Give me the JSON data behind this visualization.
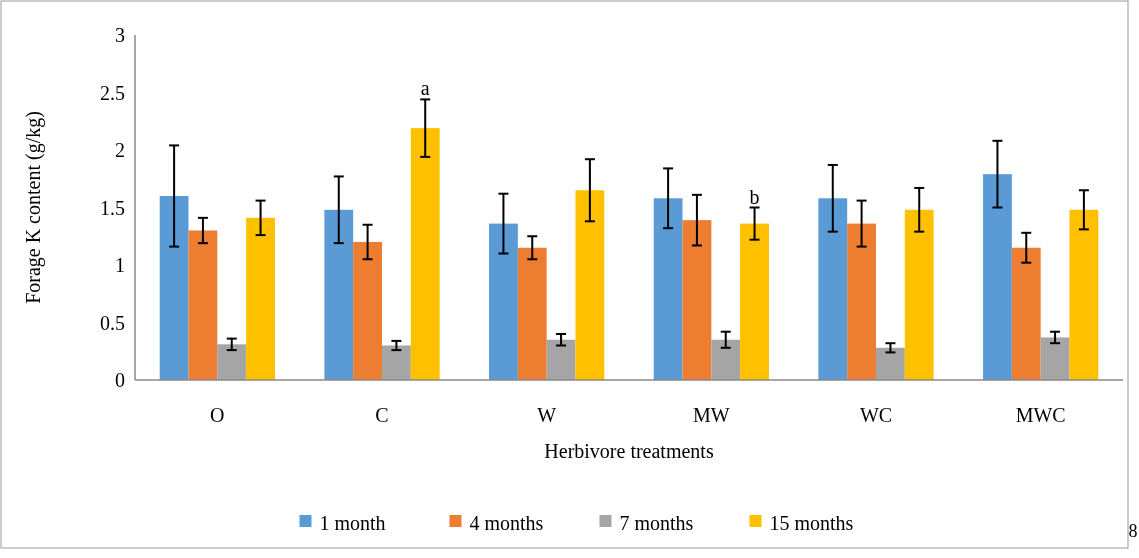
{
  "chart_data": {
    "type": "bar",
    "xlabel": "Herbivore treatments",
    "ylabel": "Forage K content (g/kg)",
    "categories": [
      "O",
      "C",
      "W",
      "MW",
      "WC",
      "MWC"
    ],
    "series": [
      {
        "name": "1 month",
        "color": "#5b9bd5",
        "values": [
          1.6,
          1.48,
          1.36,
          1.58,
          1.58,
          1.79
        ],
        "errors": [
          0.44,
          0.29,
          0.26,
          0.26,
          0.29,
          0.29
        ]
      },
      {
        "name": "4 months",
        "color": "#ed7d31",
        "values": [
          1.3,
          1.2,
          1.15,
          1.39,
          1.36,
          1.15
        ],
        "errors": [
          0.11,
          0.15,
          0.1,
          0.22,
          0.2,
          0.13
        ]
      },
      {
        "name": "7 months",
        "color": "#a5a5a5",
        "values": [
          0.31,
          0.3,
          0.35,
          0.35,
          0.28,
          0.37
        ],
        "errors": [
          0.05,
          0.04,
          0.05,
          0.07,
          0.04,
          0.05
        ]
      },
      {
        "name": "15 months",
        "color": "#ffc000",
        "values": [
          1.41,
          2.19,
          1.65,
          1.36,
          1.48,
          1.48
        ],
        "errors": [
          0.15,
          0.25,
          0.27,
          0.14,
          0.19,
          0.17
        ]
      }
    ],
    "ylim": [
      0,
      3
    ],
    "yticks": [
      0,
      0.5,
      1,
      1.5,
      2,
      2.5,
      3
    ],
    "grid": false,
    "legend": "bottom",
    "annotations": [
      "a",
      "b",
      "8"
    ]
  }
}
